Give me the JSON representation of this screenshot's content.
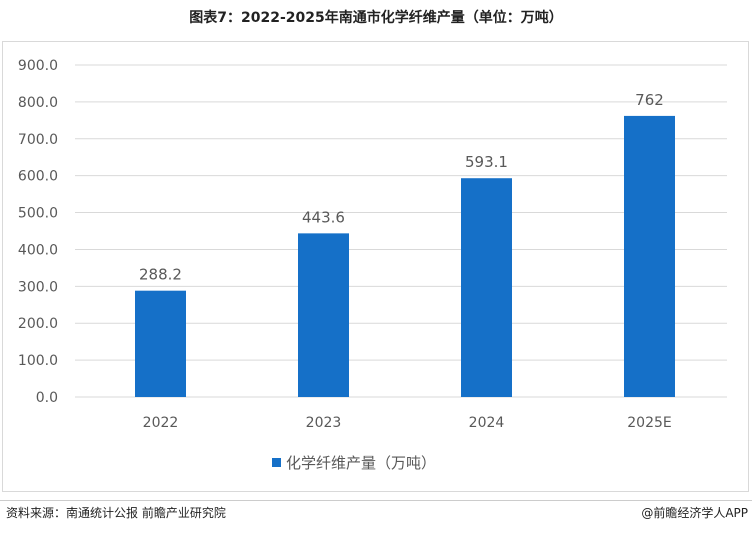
{
  "title": "图表7：2022-2025年南通市化学纤维产量（单位：万吨）",
  "source": "资料来源：南通统计公报 前瞻产业研究院",
  "credit": "@前瞻经济学人APP",
  "colors": {
    "bar": "#1570c8",
    "grid": "#d9d9d9",
    "text": "#595959"
  },
  "chart_data": {
    "type": "bar",
    "categories": [
      "2022",
      "2023",
      "2024",
      "2025E"
    ],
    "series": [
      {
        "name": "化学纤维产量（万吨）",
        "values": [
          288.2,
          443.6,
          593.1,
          762
        ]
      }
    ],
    "data_labels": [
      "288.2",
      "443.6",
      "593.1",
      "762"
    ],
    "y_ticks": [
      "0.0",
      "100.0",
      "200.0",
      "300.0",
      "400.0",
      "500.0",
      "600.0",
      "700.0",
      "800.0",
      "900.0"
    ],
    "ylim": [
      0,
      900
    ],
    "grid": true,
    "legend": "bottom"
  }
}
